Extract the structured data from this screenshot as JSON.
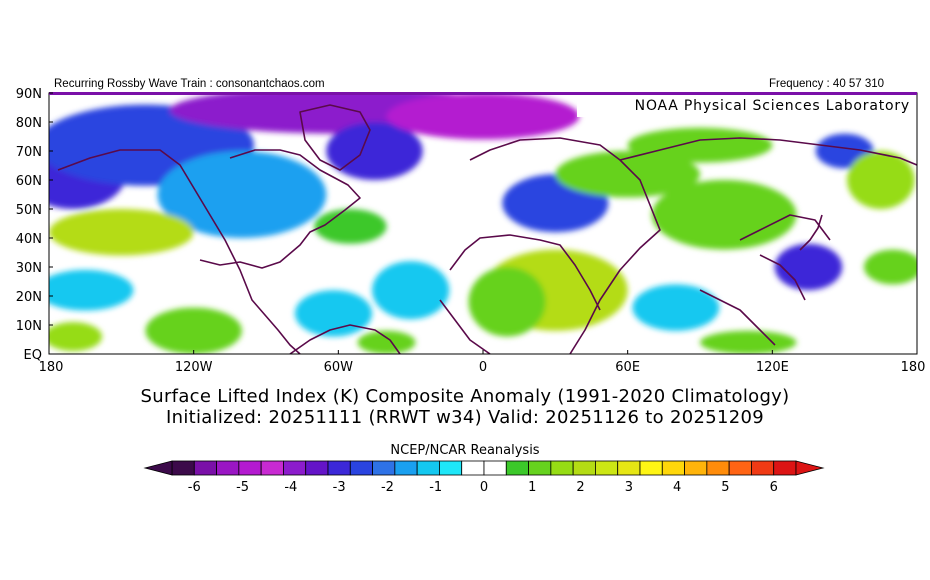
{
  "header": {
    "left_credit": "Recurring Rossby Wave Train : consonantchaos.com",
    "right_frequency": "Frequency : 40 57 310",
    "lab_name": "NOAA Physical Sciences Laboratory"
  },
  "map": {
    "region": "0-90N, 180W-180E",
    "lat_labels": [
      "90N",
      "80N",
      "70N",
      "60N",
      "50N",
      "40N",
      "30N",
      "20N",
      "10N",
      "EQ"
    ],
    "lon_labels": [
      "180",
      "120W",
      "60W",
      "0",
      "60E",
      "120E",
      "180"
    ],
    "background_color": "#ffffff",
    "coastline_color": "#5a0a4a"
  },
  "titles": {
    "line1": "Surface Lifted Index (K) Composite Anomaly (1991-2020 Climatology)",
    "line2": "Initialized: 20251111 (RRWT w34) Valid: 20251126 to 20251209"
  },
  "colorbar": {
    "label": "NCEP/NCAR Reanalysis",
    "ticks": [
      "-6",
      "-5",
      "-4",
      "-3",
      "-2",
      "-1",
      "0",
      "1",
      "2",
      "3",
      "4",
      "5",
      "6"
    ],
    "colors": [
      "#3c0a4a",
      "#7a10a8",
      "#9a16c4",
      "#b41ad0",
      "#c82ad2",
      "#8c1ccc",
      "#6414c8",
      "#3c28d8",
      "#2a44e0",
      "#2e72e6",
      "#1aa0f0",
      "#14c8f0",
      "#1ee6f8",
      "#ffffff",
      "#ffffff",
      "#3cc82a",
      "#66d21e",
      "#96dc14",
      "#b4dc14",
      "#cce614",
      "#e6e614",
      "#fff514",
      "#ffd70a",
      "#ffb40a",
      "#ff8c0a",
      "#ff6414",
      "#f03a14",
      "#dc1414"
    ]
  },
  "anomaly_patches": [
    {
      "lon": -170,
      "lat": 62,
      "rx": 22,
      "ry": 12,
      "value": -3.5
    },
    {
      "lon": -140,
      "lat": 72,
      "rx": 45,
      "ry": 14,
      "value": -3
    },
    {
      "lon": -100,
      "lat": 55,
      "rx": 35,
      "ry": 15,
      "value": -2
    },
    {
      "lon": -60,
      "lat": 84,
      "rx": 70,
      "ry": 8,
      "value": -4.5
    },
    {
      "lon": -45,
      "lat": 70,
      "rx": 20,
      "ry": 10,
      "value": -3.5
    },
    {
      "lon": 0,
      "lat": 82,
      "rx": 40,
      "ry": 8,
      "value": -5.5
    },
    {
      "lon": -150,
      "lat": 42,
      "rx": 30,
      "ry": 8,
      "value": 2.5
    },
    {
      "lon": -165,
      "lat": 22,
      "rx": 20,
      "ry": 7,
      "value": -1.5
    },
    {
      "lon": -120,
      "lat": 8,
      "rx": 20,
      "ry": 8,
      "value": 1.5
    },
    {
      "lon": -170,
      "lat": 6,
      "rx": 12,
      "ry": 5,
      "value": 2
    },
    {
      "lon": -55,
      "lat": 44,
      "rx": 15,
      "ry": 6,
      "value": 1
    },
    {
      "lon": -30,
      "lat": 22,
      "rx": 16,
      "ry": 10,
      "value": -1.5
    },
    {
      "lon": -62,
      "lat": 14,
      "rx": 16,
      "ry": 8,
      "value": -1.5
    },
    {
      "lon": -40,
      "lat": 4,
      "rx": 12,
      "ry": 4,
      "value": 1.5
    },
    {
      "lon": 30,
      "lat": 52,
      "rx": 22,
      "ry": 10,
      "value": -3
    },
    {
      "lon": 60,
      "lat": 62,
      "rx": 30,
      "ry": 8,
      "value": 1.5
    },
    {
      "lon": 30,
      "lat": 22,
      "rx": 30,
      "ry": 14,
      "value": 2.5
    },
    {
      "lon": 10,
      "lat": 18,
      "rx": 16,
      "ry": 12,
      "value": 1.5
    },
    {
      "lon": 100,
      "lat": 48,
      "rx": 30,
      "ry": 12,
      "value": 1.5
    },
    {
      "lon": 90,
      "lat": 72,
      "rx": 30,
      "ry": 6,
      "value": 1.5
    },
    {
      "lon": 135,
      "lat": 30,
      "rx": 14,
      "ry": 8,
      "value": -3.5
    },
    {
      "lon": 150,
      "lat": 70,
      "rx": 12,
      "ry": 6,
      "value": -3
    },
    {
      "lon": 165,
      "lat": 60,
      "rx": 14,
      "ry": 10,
      "value": 2
    },
    {
      "lon": 170,
      "lat": 30,
      "rx": 12,
      "ry": 6,
      "value": 1.5
    },
    {
      "lon": 80,
      "lat": 16,
      "rx": 18,
      "ry": 8,
      "value": -1.5
    },
    {
      "lon": 110,
      "lat": 4,
      "rx": 20,
      "ry": 4,
      "value": 1.5
    }
  ]
}
